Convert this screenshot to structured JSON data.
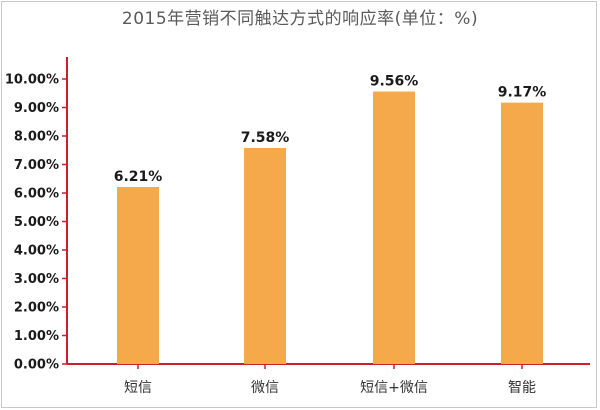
{
  "chart_data": {
    "type": "bar",
    "title": "2015年营销不同触达方式的响应率(单位：%)",
    "categories": [
      "短信",
      "微信",
      "短信+微信",
      "智能"
    ],
    "values": [
      6.21,
      7.58,
      9.56,
      9.17
    ],
    "value_labels": [
      "6.21%",
      "7.58%",
      "9.56%",
      "9.17%"
    ],
    "y_ticks": [
      "0.00%",
      "1.00%",
      "2.00%",
      "3.00%",
      "4.00%",
      "5.00%",
      "6.00%",
      "7.00%",
      "8.00%",
      "9.00%",
      "10.00%"
    ],
    "ylim": [
      0,
      10.5
    ],
    "grid": false,
    "colors": {
      "bar": "#F5A94A",
      "axis": "#CC1F2E"
    }
  }
}
